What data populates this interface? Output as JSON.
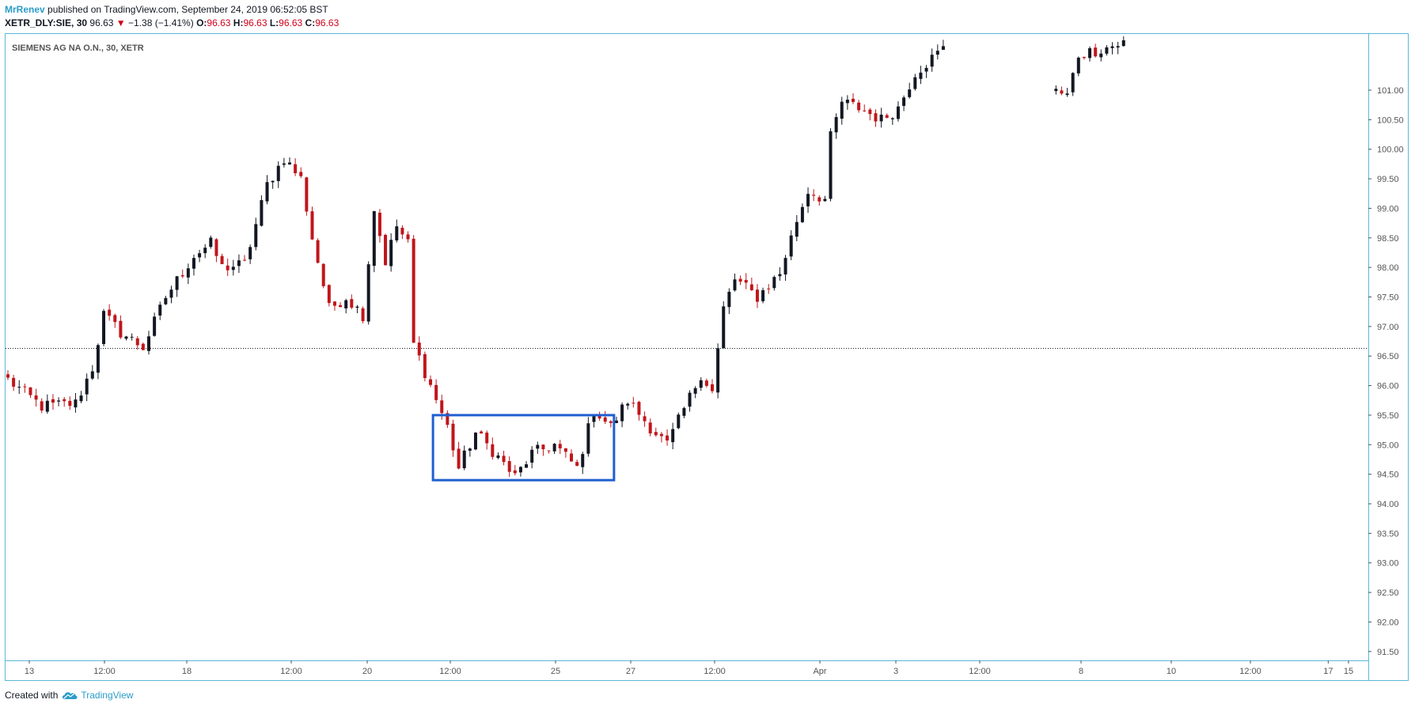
{
  "header": {
    "author": "MrRenev",
    "published_text": "published on TradingView.com, September 24, 2019 06:52:05 BST",
    "symbol_interval": "XETR_DLY:SIE, 30",
    "last_price": "96.63",
    "change_arrow": "▼",
    "change": "−1.38 (−1.41%)",
    "ohlc": [
      {
        "label": "O:",
        "value": "96.63"
      },
      {
        "label": "H:",
        "value": "96.63"
      },
      {
        "label": "L:",
        "value": "96.63"
      },
      {
        "label": "C:",
        "value": "96.63"
      }
    ]
  },
  "footer": {
    "created_with": "Created with",
    "brand": "TradingView",
    "logo_icon": "tradingview-cloud-icon"
  },
  "colors": {
    "border": "#5bb8d8",
    "up": "#131722",
    "down": "#c0161b",
    "annotation_box": "#1f5fd0",
    "text_muted": "#555555",
    "brand": "#2a9cc8"
  },
  "chart_data": {
    "type": "candlestick",
    "title": "SIEMENS AG NA O.N., 30, XETR",
    "y_axis": {
      "range": [
        91.35,
        101.95
      ],
      "ticks": [
        "91.50",
        "92.00",
        "92.50",
        "93.00",
        "93.50",
        "94.00",
        "94.50",
        "95.00",
        "95.50",
        "96.00",
        "96.50",
        "97.00",
        "97.50",
        "98.00",
        "98.50",
        "99.00",
        "99.50",
        "100.00",
        "100.50",
        "101.00"
      ]
    },
    "x_axis": {
      "ticks": [
        "13",
        "12:00",
        "18",
        "12:00",
        "20",
        "12:00",
        "25",
        "27",
        "12:00",
        "Apr",
        "3",
        "12:00",
        "8",
        "10",
        "12:00",
        "15",
        "17"
      ]
    },
    "last_price_line": 96.63,
    "annotation_box": {
      "y_low": 94.4,
      "y_high": 95.5,
      "from_candle": 76,
      "to_candle": 107
    },
    "series": [
      {
        "path": [
          {
            "i": 0,
            "v": 96.1
          },
          {
            "i": 6,
            "v": 95.65
          },
          {
            "i": 12,
            "v": 95.7
          },
          {
            "i": 15,
            "v": 96.3
          },
          {
            "i": 17,
            "v": 97.2
          },
          {
            "i": 20,
            "v": 96.9
          },
          {
            "i": 24,
            "v": 96.65
          },
          {
            "i": 28,
            "v": 97.5
          },
          {
            "i": 33,
            "v": 98.2
          },
          {
            "i": 36,
            "v": 98.4
          },
          {
            "i": 38,
            "v": 98.0
          },
          {
            "i": 42,
            "v": 98.05
          },
          {
            "i": 46,
            "v": 99.4
          },
          {
            "i": 49,
            "v": 99.85
          },
          {
            "i": 52,
            "v": 99.5
          },
          {
            "i": 54,
            "v": 98.5
          },
          {
            "i": 57,
            "v": 97.3
          },
          {
            "i": 60,
            "v": 97.5
          },
          {
            "i": 63,
            "v": 97.2
          },
          {
            "i": 65,
            "v": 99.0
          },
          {
            "i": 67,
            "v": 98.1
          },
          {
            "i": 69,
            "v": 98.7
          },
          {
            "i": 71,
            "v": 98.4
          },
          {
            "i": 72,
            "v": 96.7
          },
          {
            "i": 75,
            "v": 96.0
          },
          {
            "i": 78,
            "v": 95.3
          },
          {
            "i": 80,
            "v": 94.6
          },
          {
            "i": 83,
            "v": 95.2
          },
          {
            "i": 86,
            "v": 94.9
          },
          {
            "i": 90,
            "v": 94.45
          },
          {
            "i": 93,
            "v": 94.85
          },
          {
            "i": 97,
            "v": 95.0
          },
          {
            "i": 101,
            "v": 94.6
          },
          {
            "i": 104,
            "v": 95.6
          },
          {
            "i": 107,
            "v": 95.3
          },
          {
            "i": 110,
            "v": 95.75
          },
          {
            "i": 114,
            "v": 95.3
          },
          {
            "i": 117,
            "v": 95.0
          },
          {
            "i": 120,
            "v": 95.6
          },
          {
            "i": 123,
            "v": 96.2
          },
          {
            "i": 125,
            "v": 95.9
          },
          {
            "i": 127,
            "v": 97.3
          },
          {
            "i": 129,
            "v": 97.8
          },
          {
            "i": 133,
            "v": 97.5
          },
          {
            "i": 137,
            "v": 97.9
          },
          {
            "i": 140,
            "v": 98.8
          },
          {
            "i": 142,
            "v": 99.3
          },
          {
            "i": 145,
            "v": 99.15
          },
          {
            "i": 146,
            "v": 100.2
          },
          {
            "i": 148,
            "v": 100.8
          },
          {
            "i": 151,
            "v": 100.7
          },
          {
            "i": 155,
            "v": 100.5
          },
          {
            "i": 158,
            "v": 100.7
          },
          {
            "i": 161,
            "v": 101.3
          },
          {
            "i": 166,
            "v": 101.7
          },
          {
            "i": 188,
            "v": 100.9
          },
          {
            "i": 190,
            "v": 101.6
          },
          {
            "i": 198,
            "v": 101.8
          }
        ]
      }
    ]
  }
}
